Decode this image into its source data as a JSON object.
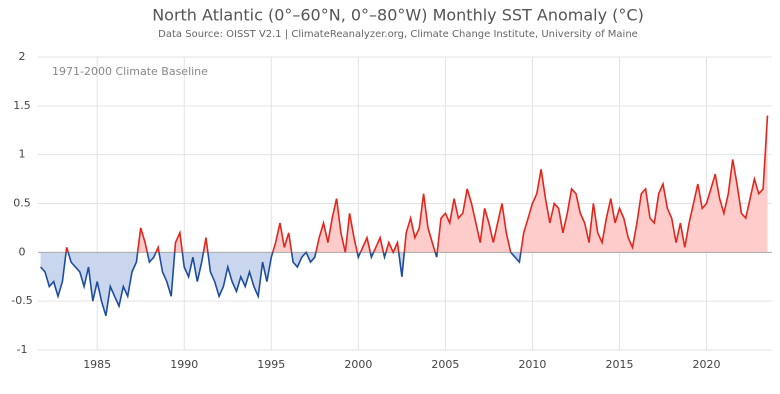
{
  "chart_data": {
    "type": "anomaly-line",
    "title": "North Atlantic (0°–60°N, 0°–80°W) Monthly SST Anomaly (°C)",
    "subtitle": "Data Source: OISST V2.1 | ClimateReanalyzer.org, Climate Change Institute, University of Maine",
    "annotation": "1971-2000 Climate Baseline",
    "x": [
      1981.75,
      1982,
      1982.25,
      1982.5,
      1982.75,
      1983,
      1983.25,
      1983.5,
      1983.75,
      1984,
      1984.25,
      1984.5,
      1984.75,
      1985,
      1985.25,
      1985.5,
      1985.75,
      1986,
      1986.25,
      1986.5,
      1986.75,
      1987,
      1987.25,
      1987.5,
      1987.75,
      1988,
      1988.25,
      1988.5,
      1988.75,
      1989,
      1989.25,
      1989.5,
      1989.75,
      1990,
      1990.25,
      1990.5,
      1990.75,
      1991,
      1991.25,
      1991.5,
      1991.75,
      1992,
      1992.25,
      1992.5,
      1992.75,
      1993,
      1993.25,
      1993.5,
      1993.75,
      1994,
      1994.25,
      1994.5,
      1994.75,
      1995,
      1995.25,
      1995.5,
      1995.75,
      1996,
      1996.25,
      1996.5,
      1996.75,
      1997,
      1997.25,
      1997.5,
      1997.75,
      1998,
      1998.25,
      1998.5,
      1998.75,
      1999,
      1999.25,
      1999.5,
      1999.75,
      2000,
      2000.25,
      2000.5,
      2000.75,
      2001,
      2001.25,
      2001.5,
      2001.75,
      2002,
      2002.25,
      2002.5,
      2002.75,
      2003,
      2003.25,
      2003.5,
      2003.75,
      2004,
      2004.25,
      2004.5,
      2004.75,
      2005,
      2005.25,
      2005.5,
      2005.75,
      2006,
      2006.25,
      2006.5,
      2006.75,
      2007,
      2007.25,
      2007.5,
      2007.75,
      2008,
      2008.25,
      2008.5,
      2008.75,
      2009,
      2009.25,
      2009.5,
      2009.75,
      2010,
      2010.25,
      2010.5,
      2010.75,
      2011,
      2011.25,
      2011.5,
      2011.75,
      2012,
      2012.25,
      2012.5,
      2012.75,
      2013,
      2013.25,
      2013.5,
      2013.75,
      2014,
      2014.25,
      2014.5,
      2014.75,
      2015,
      2015.25,
      2015.5,
      2015.75,
      2016,
      2016.25,
      2016.5,
      2016.75,
      2017,
      2017.25,
      2017.5,
      2017.75,
      2018,
      2018.25,
      2018.5,
      2018.75,
      2019,
      2019.25,
      2019.5,
      2019.75,
      2020,
      2020.25,
      2020.5,
      2020.75,
      2021,
      2021.25,
      2021.5,
      2021.75,
      2022,
      2022.25,
      2022.5,
      2022.75,
      2023,
      2023.25,
      2023.5
    ],
    "values": [
      -0.15,
      -0.2,
      -0.35,
      -0.3,
      -0.45,
      -0.3,
      0.05,
      -0.1,
      -0.15,
      -0.2,
      -0.35,
      -0.15,
      -0.5,
      -0.3,
      -0.5,
      -0.65,
      -0.35,
      -0.45,
      -0.55,
      -0.35,
      -0.45,
      -0.2,
      -0.1,
      0.25,
      0.1,
      -0.1,
      -0.05,
      0.05,
      -0.2,
      -0.3,
      -0.45,
      0.1,
      0.2,
      -0.15,
      -0.25,
      -0.05,
      -0.3,
      -0.1,
      0.15,
      -0.2,
      -0.3,
      -0.45,
      -0.35,
      -0.15,
      -0.3,
      -0.4,
      -0.25,
      -0.35,
      -0.2,
      -0.35,
      -0.45,
      -0.1,
      -0.3,
      -0.05,
      0.1,
      0.3,
      0.05,
      0.2,
      -0.1,
      -0.15,
      -0.05,
      0.0,
      -0.1,
      -0.05,
      0.15,
      0.3,
      0.1,
      0.35,
      0.55,
      0.2,
      0.0,
      0.4,
      0.15,
      -0.05,
      0.05,
      0.15,
      -0.05,
      0.05,
      0.15,
      -0.05,
      0.1,
      0.0,
      0.1,
      -0.25,
      0.2,
      0.35,
      0.15,
      0.25,
      0.6,
      0.25,
      0.1,
      -0.05,
      0.35,
      0.4,
      0.3,
      0.55,
      0.35,
      0.4,
      0.65,
      0.5,
      0.3,
      0.1,
      0.45,
      0.3,
      0.1,
      0.3,
      0.5,
      0.2,
      0.0,
      -0.05,
      -0.1,
      0.2,
      0.35,
      0.5,
      0.6,
      0.85,
      0.55,
      0.3,
      0.5,
      0.45,
      0.2,
      0.4,
      0.65,
      0.6,
      0.4,
      0.3,
      0.1,
      0.5,
      0.2,
      0.1,
      0.35,
      0.55,
      0.3,
      0.45,
      0.35,
      0.15,
      0.05,
      0.3,
      0.6,
      0.65,
      0.35,
      0.3,
      0.6,
      0.7,
      0.45,
      0.35,
      0.1,
      0.3,
      0.05,
      0.3,
      0.5,
      0.7,
      0.45,
      0.5,
      0.65,
      0.8,
      0.55,
      0.4,
      0.6,
      0.95,
      0.7,
      0.4,
      0.35,
      0.55,
      0.75,
      0.6,
      0.65,
      1.4
    ],
    "colors": {
      "positive_line": "#e3261c",
      "positive_fill": "#ffcccc",
      "negative_line": "#1d4e9e",
      "negative_fill": "#c9d6ee"
    },
    "xlim": [
      1981.6,
      2023.76
    ],
    "ylim": [
      -1,
      2
    ],
    "xticks": [
      1985,
      1990,
      1995,
      2000,
      2005,
      2010,
      2015,
      2020
    ],
    "yticks": [
      -1,
      -0.5,
      0,
      0.5,
      1,
      1.5,
      2
    ],
    "grid": true
  }
}
